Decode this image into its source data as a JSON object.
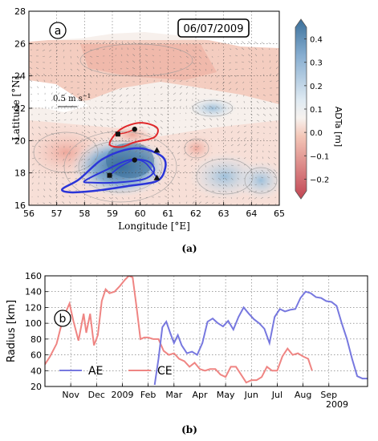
{
  "chart_data": [
    {
      "type": "heatmap",
      "panel_label": "a",
      "date": "06/07/2009",
      "xlabel": "Longitude [°E]",
      "ylabel": "Latitude [°N]",
      "xlim": [
        56,
        65
      ],
      "ylim": [
        16,
        28
      ],
      "xticks": [
        "56",
        "57",
        "58",
        "59",
        "60",
        "61",
        "62",
        "63",
        "64",
        "65"
      ],
      "yticks": [
        "16",
        "18",
        "20",
        "22",
        "24",
        "26",
        "28"
      ],
      "colorbar": {
        "label": "ADTa [m]",
        "range": [
          -0.25,
          0.45
        ],
        "ticks": [
          "0.4",
          "0.3",
          "0.2",
          "0.1",
          "0.0",
          "−0.1",
          "−0.2"
        ],
        "tick_values": [
          0.4,
          0.3,
          0.2,
          0.1,
          0.0,
          -0.1,
          -0.2
        ],
        "colors": {
          "low": "#c14553",
          "mid": "#f7f7f7",
          "high": "#3a6f9a"
        }
      },
      "vector_scale_label": "0.5 m s",
      "vector_scale_exp": "−1",
      "caption": "(a)",
      "anticyclone_contours": {
        "color": "#2b35d8",
        "outer": [
          [
            57.2,
            17.0
          ],
          [
            57.8,
            17.6
          ],
          [
            58.6,
            18.8
          ],
          [
            59.4,
            19.4
          ],
          [
            60.1,
            19.5
          ],
          [
            60.8,
            19.0
          ],
          [
            60.9,
            18.3
          ],
          [
            60.6,
            17.5
          ],
          [
            59.6,
            17.2
          ],
          [
            58.4,
            16.9
          ],
          [
            57.5,
            16.8
          ]
        ],
        "inner": [
          [
            58.0,
            17.5
          ],
          [
            58.8,
            18.2
          ],
          [
            59.6,
            18.8
          ],
          [
            60.3,
            18.7
          ],
          [
            60.5,
            18.1
          ],
          [
            60.1,
            17.6
          ],
          [
            59.1,
            17.4
          ],
          [
            58.3,
            17.4
          ]
        ],
        "track": [
          [
            58.9,
            17.85
          ],
          [
            59.3,
            18.4
          ],
          [
            59.8,
            18.8
          ],
          [
            60.2,
            18.6
          ],
          [
            60.6,
            17.7
          ]
        ]
      },
      "cyclone_contours": {
        "color": "#e0272a",
        "outer": [
          [
            58.9,
            19.8
          ],
          [
            59.3,
            20.7
          ],
          [
            60.0,
            21.1
          ],
          [
            60.6,
            20.8
          ],
          [
            60.5,
            20.2
          ],
          [
            59.8,
            19.9
          ],
          [
            59.3,
            19.6
          ]
        ],
        "track": [
          [
            59.2,
            20.4
          ],
          [
            59.5,
            20.5
          ],
          [
            59.8,
            20.7
          ]
        ]
      },
      "markers": {
        "ae_start_square": [
          58.9,
          17.85
        ],
        "ae_dot": [
          59.8,
          18.8
        ],
        "ae_triangle": [
          60.6,
          17.7
        ],
        "ae_triangle_top": [
          60.6,
          19.4
        ],
        "ce_square": [
          59.2,
          20.4
        ],
        "ce_dot": [
          59.8,
          20.7
        ]
      }
    },
    {
      "type": "line",
      "panel_label": "b",
      "ylabel": "Radius [km]",
      "ylim": [
        20,
        160
      ],
      "yticks": [
        "20",
        "40",
        "60",
        "80",
        "100",
        "120",
        "140",
        "160"
      ],
      "tick_labels": [
        "Nov",
        "Dec",
        "2009",
        "Feb",
        "Mar",
        "Apr",
        "May",
        "Jun",
        "Jul",
        "Aug",
        "Sep"
      ],
      "tick_months": [
        1,
        2,
        3,
        4,
        5,
        6,
        7,
        8,
        9,
        10,
        11
      ],
      "year_label": "2009",
      "xlim_months": [
        0,
        12.5
      ],
      "caption": "(b)",
      "series": [
        {
          "name": "AE",
          "color": "#7778df",
          "x": [
            4.25,
            4.4,
            4.55,
            4.7,
            4.85,
            5.0,
            5.15,
            5.3,
            5.5,
            5.7,
            5.9,
            6.1,
            6.3,
            6.5,
            6.7,
            6.9,
            7.1,
            7.3,
            7.5,
            7.7,
            7.9,
            8.1,
            8.3,
            8.5,
            8.7,
            8.9,
            9.1,
            9.3,
            9.5,
            9.7,
            9.9,
            10.1,
            10.3,
            10.5,
            10.7,
            10.9,
            11.1,
            11.3,
            11.5,
            11.7,
            11.9,
            12.1,
            12.3,
            12.5
          ],
          "y": [
            22,
            55,
            95,
            102,
            88,
            75,
            85,
            72,
            62,
            64,
            60,
            75,
            102,
            106,
            100,
            96,
            103,
            92,
            108,
            120,
            112,
            105,
            100,
            93,
            75,
            108,
            118,
            115,
            117,
            118,
            132,
            140,
            138,
            133,
            132,
            128,
            127,
            122,
            100,
            80,
            55,
            33,
            30,
            30
          ]
        },
        {
          "name": "CE",
          "color": "#ef8583",
          "x": [
            0.0,
            0.2,
            0.45,
            0.7,
            0.95,
            1.1,
            1.3,
            1.5,
            1.6,
            1.75,
            1.9,
            2.05,
            2.2,
            2.35,
            2.5,
            2.7,
            2.9,
            3.1,
            3.25,
            3.4,
            3.55,
            3.7,
            3.85,
            4.0,
            4.2,
            4.4,
            4.6,
            4.8,
            5.0,
            5.2,
            5.4,
            5.6,
            5.8,
            6.0,
            6.2,
            6.4,
            6.6,
            6.8,
            7.0,
            7.2,
            7.4,
            7.6,
            7.8,
            8.0,
            8.2,
            8.4,
            8.6,
            8.8,
            9.0,
            9.2,
            9.4,
            9.6,
            9.8,
            10.0,
            10.2,
            10.35
          ],
          "y": [
            48,
            58,
            74,
            106,
            125,
            103,
            78,
            112,
            88,
            112,
            72,
            85,
            128,
            143,
            138,
            140,
            147,
            155,
            160,
            158,
            120,
            80,
            82,
            82,
            80,
            80,
            65,
            60,
            62,
            55,
            52,
            45,
            50,
            42,
            40,
            42,
            42,
            35,
            32,
            45,
            45,
            35,
            25,
            28,
            28,
            32,
            45,
            40,
            40,
            58,
            68,
            60,
            62,
            58,
            55,
            40
          ]
        }
      ]
    }
  ]
}
